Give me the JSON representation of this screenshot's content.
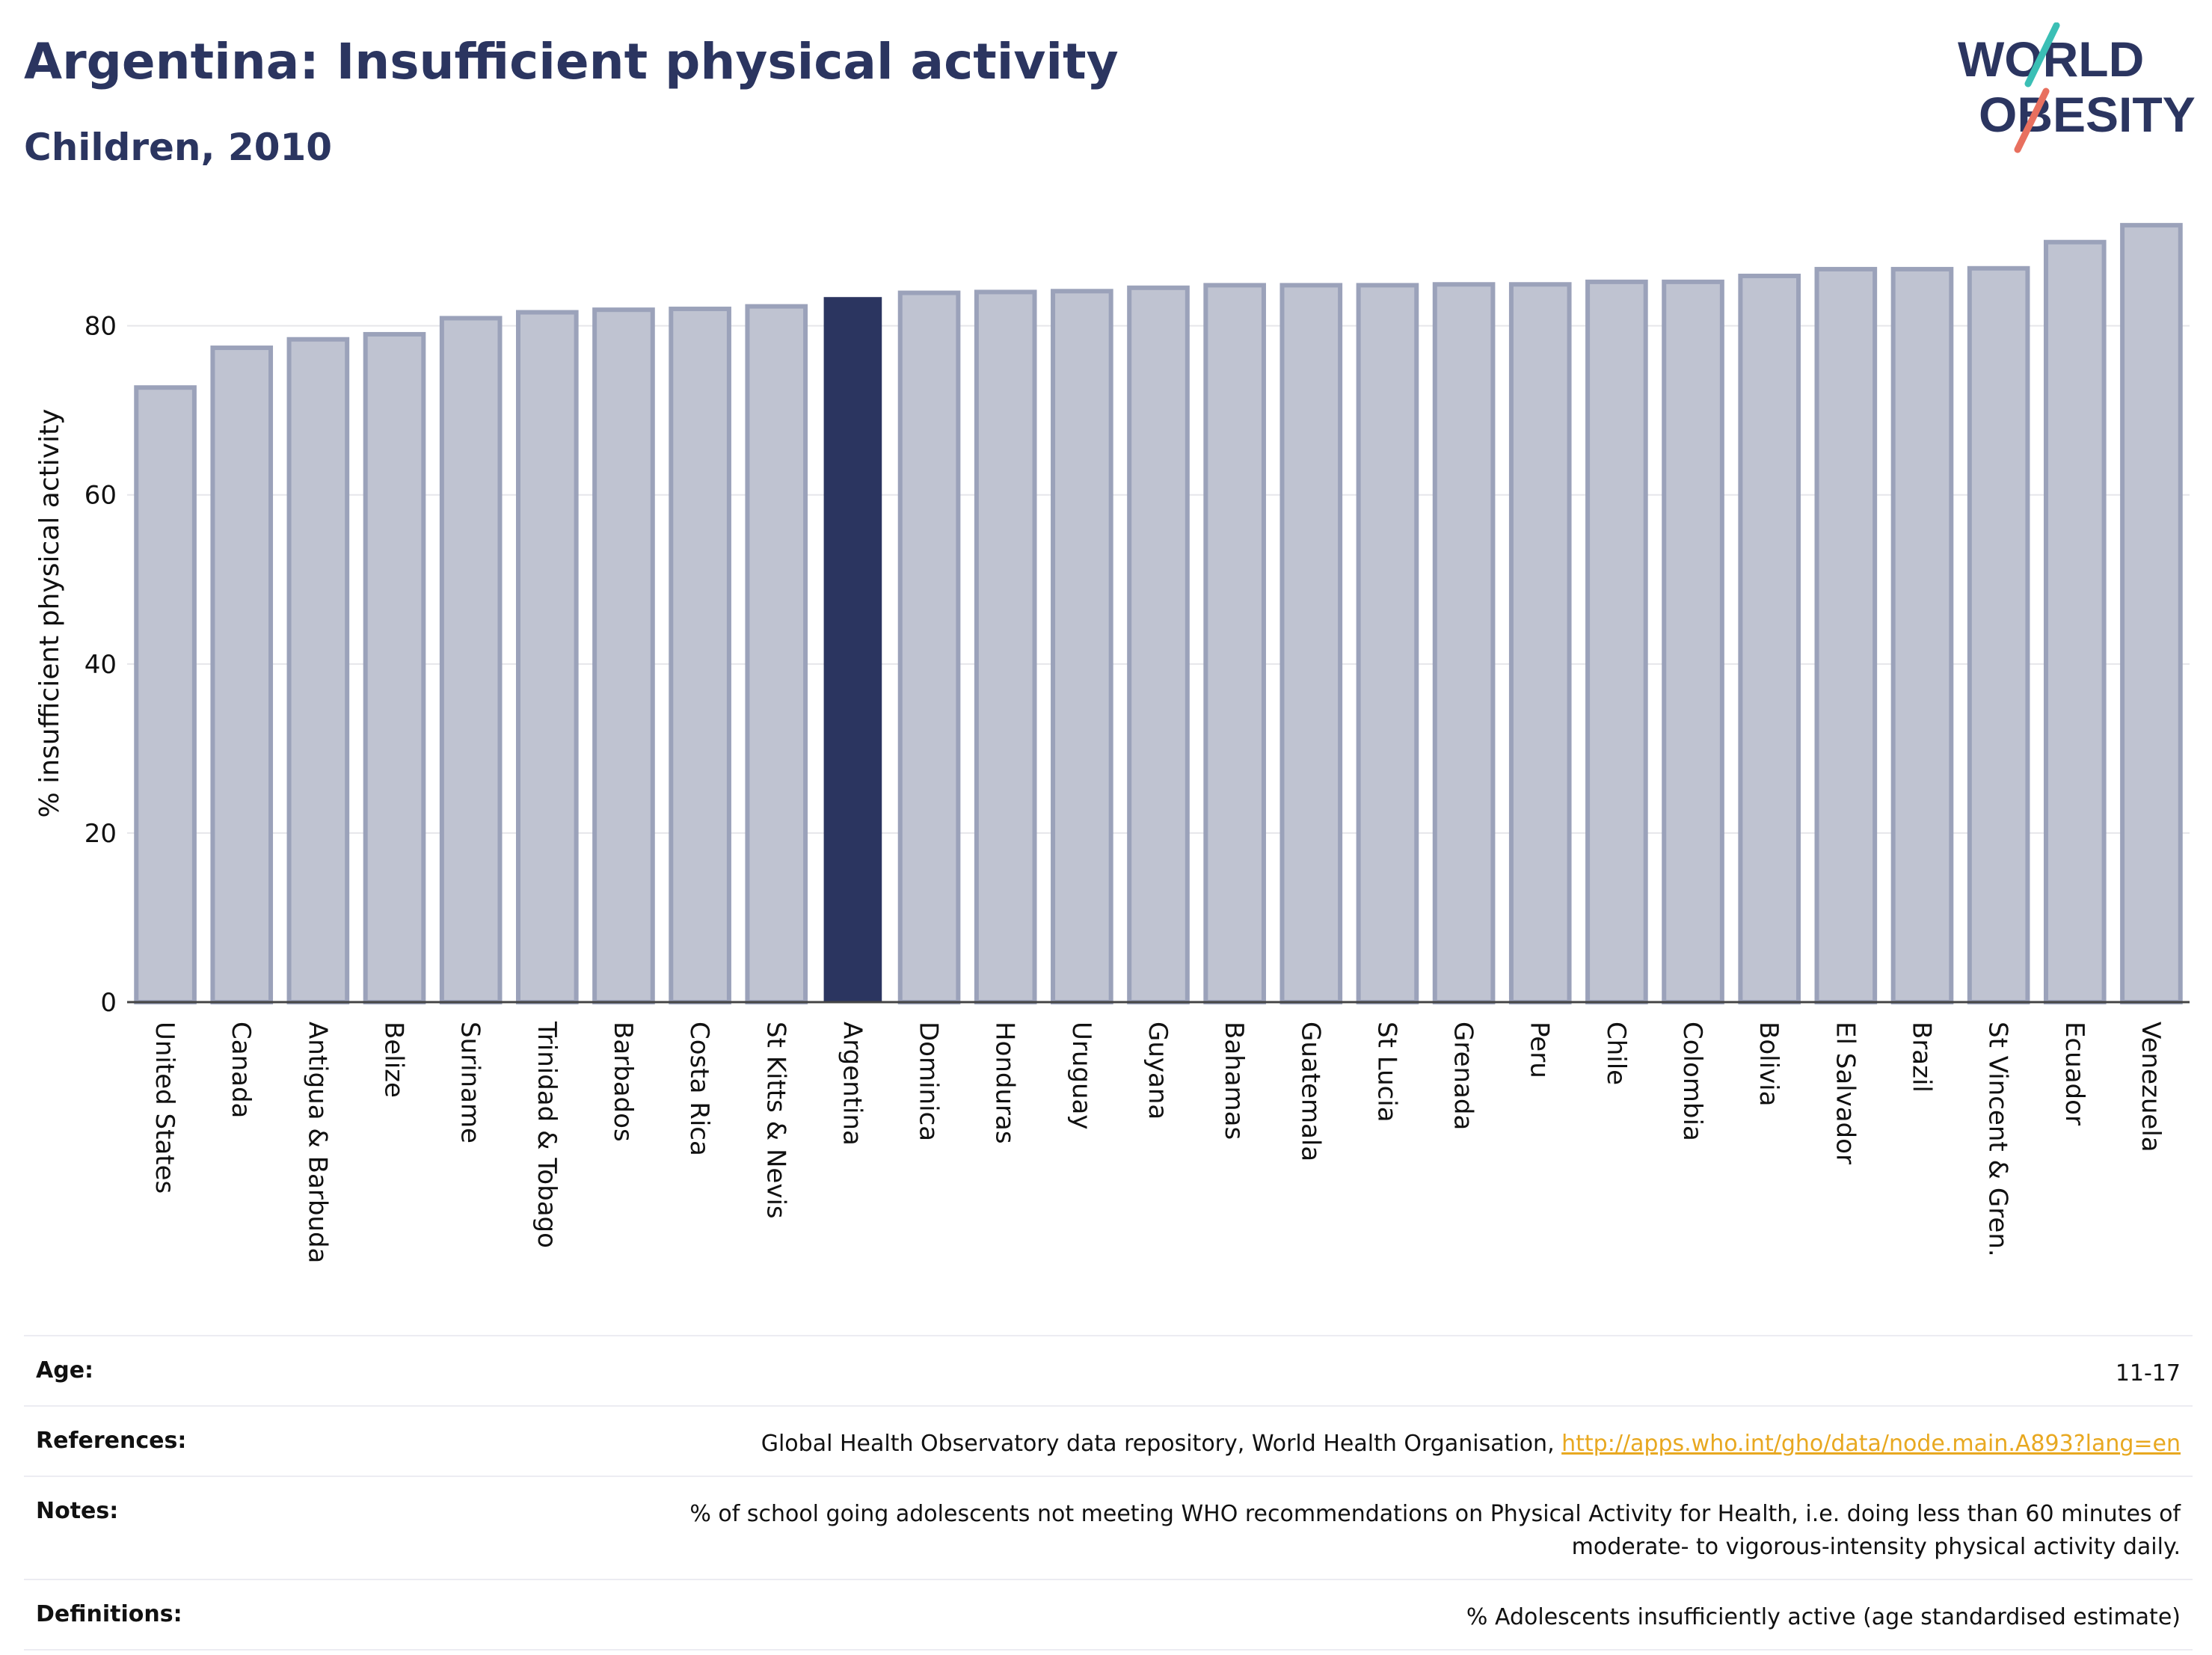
{
  "header": {
    "title": "Argentina: Insufficient physical activity",
    "subtitle": "Children, 2010"
  },
  "logo": {
    "line1": "WORLD",
    "line2": "OBESITY"
  },
  "chart_data": {
    "type": "bar",
    "categories": [
      "United States",
      "Canada",
      "Antigua & Barbuda",
      "Belize",
      "Suriname",
      "Trinidad & Tobago",
      "Barbados",
      "Costa Rica",
      "St Kitts & Nevis",
      "Argentina",
      "Dominica",
      "Honduras",
      "Uruguay",
      "Guyana",
      "Bahamas",
      "Guatemala",
      "St Lucia",
      "Grenada",
      "Peru",
      "Chile",
      "Colombia",
      "Bolivia",
      "El Salvador",
      "Brazil",
      "St Vincent & Gren.",
      "Ecuador",
      "Venezuela"
    ],
    "values": [
      72.7,
      77.4,
      78.4,
      79.0,
      80.9,
      81.6,
      81.9,
      82.0,
      82.3,
      83.4,
      83.9,
      84.0,
      84.1,
      84.5,
      84.8,
      84.8,
      84.8,
      84.9,
      84.9,
      85.2,
      85.2,
      85.9,
      86.7,
      86.7,
      86.8,
      89.9,
      91.9
    ],
    "highlight": "Argentina",
    "ylabel": "% insufficient physical activity",
    "ylim": [
      0,
      92
    ],
    "yticks": [
      0,
      20,
      40,
      60,
      80
    ],
    "grid": true,
    "colors": {
      "bar": "#bfc3d1",
      "bar_border": "#9ba2ba",
      "highlight": "#2b3560",
      "grid": "#e6e6ea",
      "axis": "#444444"
    }
  },
  "info": {
    "age_label": "Age:",
    "age_value": "11-17",
    "references_label": "References:",
    "references_text": "Global Health Observatory data repository, World Health Organisation, ",
    "references_link": "http://apps.who.int/gho/data/node.main.A893?lang=en",
    "notes_label": "Notes:",
    "notes_line1": "% of school going adolescents not meeting WHO recommendations on Physical Activity for Health, i.e. doing less than 60 minutes of",
    "notes_line2": "moderate- to vigorous-intensity physical activity daily.",
    "definitions_label": "Definitions:",
    "definitions_value": "% Adolescents insufficiently active (age standardised estimate)"
  }
}
